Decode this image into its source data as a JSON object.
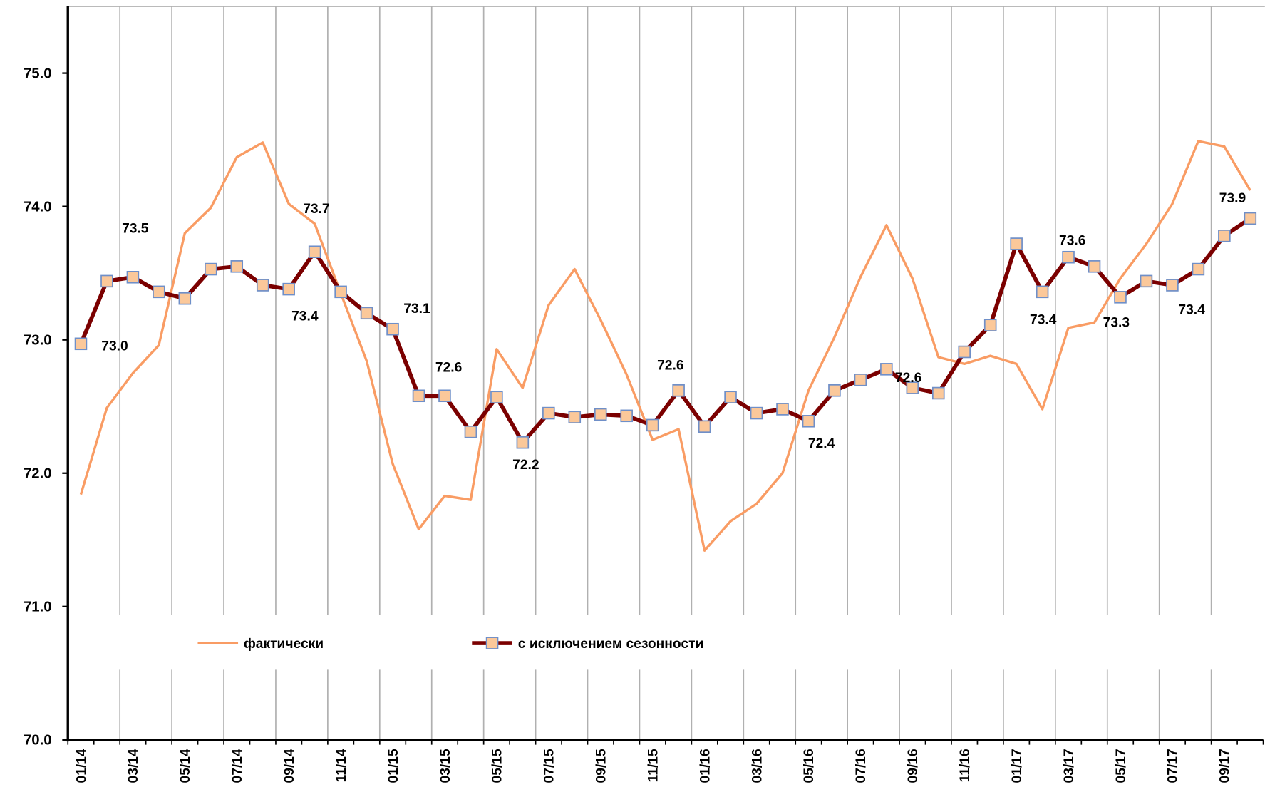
{
  "chart_data": {
    "type": "line",
    "categories": [
      "01/14",
      null,
      "03/14",
      null,
      "05/14",
      null,
      "07/14",
      null,
      "09/14",
      null,
      "11/14",
      null,
      "01/15",
      null,
      "03/15",
      null,
      "05/15",
      null,
      "07/15",
      null,
      "09/15",
      null,
      "11/15",
      null,
      "01/16",
      null,
      "03/16",
      null,
      "05/16",
      null,
      "07/16",
      null,
      "09/16",
      null,
      "11/16",
      null,
      "01/17",
      null,
      "03/17",
      null,
      "05/17",
      null,
      "07/17",
      null,
      "09/17",
      null
    ],
    "series": [
      {
        "name": "фактически",
        "color": "#f99c64",
        "marker": false,
        "values": [
          71.84,
          72.49,
          72.75,
          72.96,
          73.8,
          73.99,
          74.37,
          74.48,
          74.02,
          73.87,
          73.35,
          72.84,
          72.07,
          71.58,
          71.83,
          71.8,
          72.93,
          72.64,
          73.26,
          73.53,
          73.15,
          72.74,
          72.25,
          72.33,
          71.42,
          71.64,
          71.77,
          72.0,
          72.62,
          73.02,
          73.47,
          73.86,
          73.46,
          72.87,
          72.82,
          72.88,
          72.82,
          72.48,
          73.09,
          73.13,
          73.46,
          73.72,
          74.02,
          74.49,
          74.45,
          74.12
        ]
      },
      {
        "name": "с исключением сезонности",
        "color": "#7b0000",
        "marker": true,
        "marker_color": "#fbc89a",
        "marker_edge": "#6f8fc8",
        "values": [
          72.97,
          73.44,
          73.47,
          73.36,
          73.31,
          73.53,
          73.55,
          73.41,
          73.38,
          73.66,
          73.36,
          73.2,
          73.08,
          72.58,
          72.58,
          72.31,
          72.57,
          72.23,
          72.45,
          72.42,
          72.44,
          72.43,
          72.36,
          72.62,
          72.35,
          72.57,
          72.45,
          72.48,
          72.39,
          72.62,
          72.7,
          72.78,
          72.64,
          72.6,
          72.91,
          73.11,
          73.72,
          73.36,
          73.62,
          73.55,
          73.32,
          73.44,
          73.41,
          73.53,
          73.78,
          73.91
        ],
        "value_labels": [
          "73.0",
          null,
          "73.5",
          null,
          null,
          null,
          null,
          null,
          "73.4",
          "73.7",
          null,
          null,
          "73.1",
          null,
          "72.6",
          null,
          null,
          "72.2",
          null,
          null,
          null,
          null,
          null,
          "72.6",
          null,
          null,
          null,
          null,
          "72.4",
          null,
          null,
          null,
          "72.6",
          null,
          null,
          null,
          null,
          "73.4",
          "73.6",
          null,
          "73.3",
          null,
          "73.4",
          null,
          null,
          "73.9"
        ]
      }
    ],
    "ylim": [
      70,
      75.5
    ],
    "yticks": [
      {
        "value": 70,
        "label": "70.0"
      },
      {
        "value": 71,
        "label": "71.0"
      },
      {
        "value": 72,
        "label": "72.0"
      },
      {
        "value": 73,
        "label": "73.0"
      },
      {
        "value": 74,
        "label": "74.0"
      },
      {
        "value": 75,
        "label": "75.0"
      }
    ],
    "grid": true,
    "legend": "bottom"
  }
}
